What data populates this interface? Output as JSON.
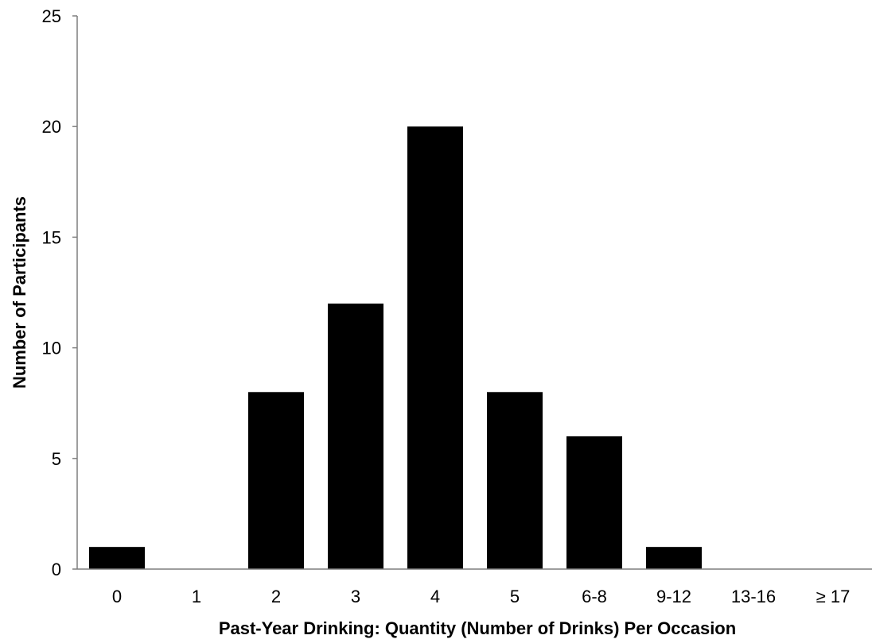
{
  "chart_data": {
    "type": "bar",
    "title": "",
    "xlabel": "Past-Year Drinking: Quantity (Number of Drinks) Per Occasion",
    "ylabel": "Number of Participants",
    "categories": [
      "0",
      "1",
      "2",
      "3",
      "4",
      "5",
      "6-8",
      "9-12",
      "13-16",
      "≥ 17"
    ],
    "values": [
      1,
      0,
      8,
      12,
      20,
      8,
      6,
      1,
      0,
      0
    ],
    "ylim": [
      0,
      25
    ],
    "yticks": [
      0,
      5,
      10,
      15,
      20,
      25
    ],
    "grid": false,
    "bar_color": "#000000"
  }
}
